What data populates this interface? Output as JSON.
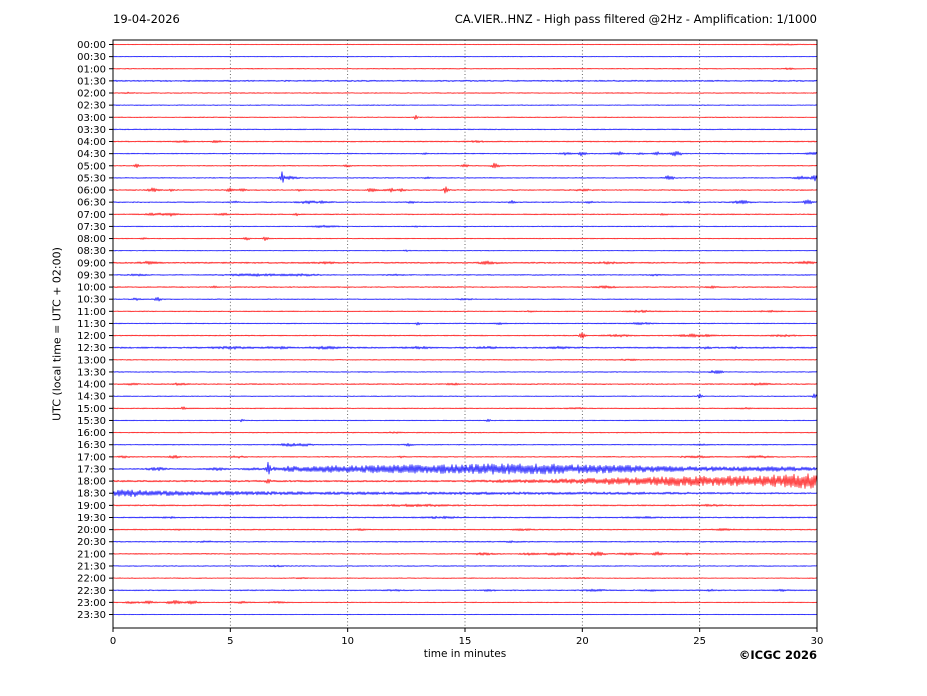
{
  "header": {
    "date": "19-04-2026",
    "title": "CA.VIER..HNZ - High pass filtered @2Hz - Amplification: 1/1000"
  },
  "footer": {
    "copyright": "©ICGC 2026"
  },
  "chart_data": {
    "type": "line",
    "subtype": "helicorder-seismogram",
    "date": "19-04-2026",
    "title": "CA.VIER..HNZ - High pass filtered @2Hz - Amplification: 1/1000",
    "xlabel": "time in minutes",
    "ylabel": "UTC (local time = UTC + 02:00)",
    "xlim": [
      0,
      30
    ],
    "x_ticks": [
      0,
      5,
      10,
      15,
      20,
      25,
      30
    ],
    "grid": "vertical dotted lines every 5 minutes",
    "legend": "none",
    "colors": {
      "red": "#ff0000",
      "blue": "#0000ff",
      "frame": "#000000",
      "grid": "#444444"
    },
    "minutes_per_row": 30,
    "rows_note": "48 half-hour traces, label = UTC start time, n = background noise half-amplitude (px), e = events [minute, half-amplitude px, gaussian width min]",
    "rows": [
      {
        "t": "00:00",
        "c": "red",
        "n": 0.35,
        "e": [
          [
            28.5,
            0.5,
            0.5
          ]
        ]
      },
      {
        "t": "00:30",
        "c": "blue",
        "n": 0.4,
        "e": []
      },
      {
        "t": "01:00",
        "c": "red",
        "n": 0.45,
        "e": [
          [
            28.8,
            0.7,
            0.15
          ]
        ]
      },
      {
        "t": "01:30",
        "c": "blue",
        "n": 0.75,
        "e": []
      },
      {
        "t": "02:00",
        "c": "red",
        "n": 0.5,
        "e": [
          [
            0.6,
            0.6,
            0.15
          ]
        ]
      },
      {
        "t": "02:30",
        "c": "blue",
        "n": 0.45,
        "e": []
      },
      {
        "t": "03:00",
        "c": "red",
        "n": 0.45,
        "e": [
          [
            12.9,
            2.8,
            0.05
          ]
        ]
      },
      {
        "t": "03:30",
        "c": "blue",
        "n": 0.55,
        "e": []
      },
      {
        "t": "04:00",
        "c": "red",
        "n": 0.6,
        "e": [
          [
            2.9,
            0.8,
            0.2
          ],
          [
            4.4,
            1.0,
            0.15
          ],
          [
            15.5,
            0.6,
            0.2
          ]
        ]
      },
      {
        "t": "04:30",
        "c": "blue",
        "n": 0.5,
        "e": [
          [
            13.3,
            1.0,
            0.08
          ],
          [
            19.3,
            1.5,
            0.15
          ],
          [
            20.0,
            2.5,
            0.1
          ],
          [
            21.5,
            2.0,
            0.15
          ],
          [
            22.5,
            1.0,
            0.1
          ],
          [
            23.2,
            1.5,
            0.12
          ],
          [
            24.0,
            2.0,
            0.18
          ],
          [
            29.8,
            1.2,
            0.2
          ]
        ]
      },
      {
        "t": "05:00",
        "c": "red",
        "n": 0.5,
        "e": [
          [
            1.0,
            1.6,
            0.08
          ],
          [
            10.0,
            1.0,
            0.1
          ],
          [
            15.0,
            1.2,
            0.1
          ],
          [
            16.3,
            2.6,
            0.12
          ]
        ]
      },
      {
        "t": "05:30",
        "c": "blue",
        "n": 0.5,
        "e": [
          [
            7.2,
            6.0,
            0.05
          ],
          [
            7.6,
            1.5,
            0.2
          ],
          [
            13.4,
            0.8,
            0.1
          ],
          [
            23.7,
            2.0,
            0.15
          ],
          [
            29.3,
            1.6,
            0.2
          ],
          [
            29.9,
            3.0,
            0.12
          ]
        ]
      },
      {
        "t": "06:00",
        "c": "red",
        "n": 0.6,
        "e": [
          [
            1.7,
            2.0,
            0.15
          ],
          [
            2.5,
            1.0,
            0.1
          ],
          [
            5.0,
            2.4,
            0.1
          ],
          [
            5.5,
            1.5,
            0.1
          ],
          [
            8.0,
            1.0,
            0.1
          ],
          [
            11.0,
            1.5,
            0.15
          ],
          [
            11.8,
            1.8,
            0.15
          ],
          [
            12.3,
            1.5,
            0.1
          ],
          [
            14.2,
            3.5,
            0.07
          ],
          [
            20.0,
            0.7,
            0.25
          ]
        ]
      },
      {
        "t": "06:30",
        "c": "blue",
        "n": 0.55,
        "e": [
          [
            5.2,
            0.8,
            0.1
          ],
          [
            8.3,
            1.2,
            0.3
          ],
          [
            9.0,
            1.0,
            0.2
          ],
          [
            12.7,
            1.0,
            0.1
          ],
          [
            17.0,
            2.0,
            0.08
          ],
          [
            20.3,
            1.0,
            0.1
          ],
          [
            24.5,
            0.8,
            0.1
          ],
          [
            26.8,
            1.5,
            0.25
          ],
          [
            29.6,
            2.2,
            0.12
          ]
        ]
      },
      {
        "t": "07:00",
        "c": "red",
        "n": 0.55,
        "e": [
          [
            1.8,
            1.0,
            0.3
          ],
          [
            2.5,
            1.4,
            0.15
          ],
          [
            4.7,
            0.8,
            0.2
          ],
          [
            7.8,
            1.3,
            0.07
          ],
          [
            23.5,
            0.6,
            0.2
          ]
        ]
      },
      {
        "t": "07:30",
        "c": "blue",
        "n": 0.45,
        "e": [
          [
            9.0,
            1.0,
            0.35
          ],
          [
            12.9,
            1.3,
            0.06
          ],
          [
            23.8,
            0.7,
            0.1
          ]
        ]
      },
      {
        "t": "08:00",
        "c": "red",
        "n": 0.45,
        "e": [
          [
            1.3,
            0.7,
            0.1
          ],
          [
            5.7,
            1.3,
            0.1
          ],
          [
            6.5,
            1.8,
            0.08
          ]
        ]
      },
      {
        "t": "08:30",
        "c": "blue",
        "n": 0.4,
        "e": [
          [
            12.5,
            0.6,
            0.1
          ]
        ]
      },
      {
        "t": "09:00",
        "c": "red",
        "n": 0.75,
        "e": [
          [
            1.5,
            1.0,
            0.25
          ],
          [
            9.0,
            0.7,
            0.3
          ],
          [
            16.0,
            1.2,
            0.25
          ],
          [
            21.0,
            0.7,
            0.3
          ],
          [
            29.5,
            1.3,
            0.2
          ]
        ]
      },
      {
        "t": "09:30",
        "c": "blue",
        "n": 0.55,
        "e": [
          [
            1.0,
            0.7,
            0.3
          ],
          [
            6.0,
            1.0,
            0.8
          ],
          [
            8.0,
            0.9,
            0.5
          ],
          [
            12.0,
            0.8,
            0.2
          ],
          [
            23.0,
            0.7,
            0.2
          ]
        ]
      },
      {
        "t": "10:00",
        "c": "red",
        "n": 0.6,
        "e": [
          [
            4.3,
            1.8,
            0.06
          ],
          [
            21.0,
            0.9,
            0.3
          ],
          [
            25.5,
            0.8,
            0.2
          ]
        ]
      },
      {
        "t": "10:30",
        "c": "blue",
        "n": 0.5,
        "e": [
          [
            1.0,
            1.2,
            0.12
          ],
          [
            1.9,
            2.0,
            0.1
          ],
          [
            15.0,
            0.6,
            0.2
          ]
        ]
      },
      {
        "t": "11:00",
        "c": "red",
        "n": 0.5,
        "e": [
          [
            17.8,
            0.8,
            0.1
          ],
          [
            22.5,
            0.9,
            0.4
          ],
          [
            28.0,
            0.8,
            0.3
          ]
        ]
      },
      {
        "t": "11:30",
        "c": "blue",
        "n": 0.5,
        "e": [
          [
            13.0,
            1.6,
            0.06
          ],
          [
            16.5,
            0.8,
            0.15
          ],
          [
            22.5,
            0.9,
            0.3
          ]
        ]
      },
      {
        "t": "12:00",
        "c": "red",
        "n": 0.55,
        "e": [
          [
            20.0,
            2.8,
            0.08
          ],
          [
            21.5,
            1.0,
            0.4
          ],
          [
            24.8,
            1.3,
            0.5
          ],
          [
            28.5,
            0.8,
            0.4
          ]
        ]
      },
      {
        "t": "12:30",
        "c": "blue",
        "n": 0.8,
        "e": [
          [
            5.0,
            0.9,
            0.5
          ],
          [
            7.0,
            0.9,
            0.4
          ],
          [
            9.0,
            0.9,
            0.5
          ],
          [
            13.0,
            0.9,
            0.3
          ],
          [
            16.0,
            0.8,
            0.3
          ],
          [
            19.0,
            0.8,
            0.3
          ],
          [
            25.3,
            1.2,
            0.1
          ],
          [
            26.5,
            1.0,
            0.1
          ]
        ]
      },
      {
        "t": "13:00",
        "c": "red",
        "n": 0.5,
        "e": [
          [
            22.0,
            0.6,
            0.3
          ]
        ]
      },
      {
        "t": "13:30",
        "c": "blue",
        "n": 0.5,
        "e": [
          [
            25.7,
            1.5,
            0.2
          ]
        ]
      },
      {
        "t": "14:00",
        "c": "red",
        "n": 0.6,
        "e": [
          [
            0.8,
            1.0,
            0.15
          ],
          [
            2.8,
            0.9,
            0.2
          ],
          [
            14.5,
            0.7,
            0.2
          ],
          [
            27.5,
            0.9,
            0.3
          ]
        ]
      },
      {
        "t": "14:30",
        "c": "blue",
        "n": 0.45,
        "e": [
          [
            25.0,
            1.8,
            0.07
          ],
          [
            29.9,
            2.0,
            0.08
          ]
        ]
      },
      {
        "t": "15:00",
        "c": "red",
        "n": 0.5,
        "e": [
          [
            3.0,
            1.4,
            0.07
          ],
          [
            19.7,
            0.8,
            0.2
          ],
          [
            27.0,
            0.6,
            0.2
          ]
        ]
      },
      {
        "t": "15:30",
        "c": "blue",
        "n": 0.45,
        "e": [
          [
            5.5,
            1.3,
            0.06
          ],
          [
            16.0,
            1.2,
            0.06
          ]
        ]
      },
      {
        "t": "16:00",
        "c": "red",
        "n": 0.5,
        "e": [
          [
            12.0,
            0.6,
            0.2
          ]
        ]
      },
      {
        "t": "16:30",
        "c": "blue",
        "n": 0.5,
        "e": [
          [
            7.5,
            1.3,
            0.3
          ],
          [
            8.2,
            1.0,
            0.2
          ],
          [
            12.6,
            1.1,
            0.12
          ],
          [
            25.0,
            0.6,
            0.2
          ]
        ]
      },
      {
        "t": "17:00",
        "c": "red",
        "n": 0.55,
        "e": [
          [
            0.5,
            0.8,
            0.2
          ],
          [
            2.6,
            1.2,
            0.15
          ],
          [
            5.3,
            0.8,
            0.2
          ],
          [
            12.3,
            0.8,
            0.1
          ],
          [
            24.8,
            0.9,
            0.4
          ],
          [
            27.5,
            1.0,
            0.35
          ]
        ]
      },
      {
        "t": "17:30",
        "c": "blue",
        "n": 0.7,
        "e": [
          [
            1.9,
            1.2,
            0.3
          ],
          [
            4.4,
            1.3,
            0.25
          ],
          [
            5.9,
            0.9,
            0.2
          ],
          [
            6.62,
            9.0,
            0.045
          ],
          [
            7.3,
            2.0,
            0.5
          ],
          [
            9.0,
            2.3,
            0.8
          ],
          [
            11.0,
            2.7,
            1.0
          ],
          [
            13.0,
            3.0,
            1.0
          ],
          [
            15.0,
            3.3,
            1.0
          ],
          [
            16.8,
            3.6,
            0.9
          ],
          [
            18.5,
            3.4,
            0.9
          ],
          [
            20.3,
            3.1,
            0.9
          ],
          [
            22.0,
            2.4,
            0.9
          ],
          [
            24.0,
            1.7,
            1.0
          ],
          [
            26.5,
            1.4,
            1.5
          ],
          [
            29.0,
            1.3,
            1.2
          ]
        ]
      },
      {
        "t": "18:00",
        "c": "red",
        "n": 0.9,
        "e": [
          [
            6.6,
            1.5,
            0.08
          ],
          [
            17.0,
            0.8,
            1.0
          ],
          [
            19.5,
            1.3,
            1.0
          ],
          [
            21.5,
            2.0,
            1.0
          ],
          [
            23.5,
            2.8,
            1.2
          ],
          [
            26.0,
            3.5,
            1.5
          ],
          [
            28.5,
            4.0,
            1.2
          ],
          [
            30.0,
            4.2,
            0.8
          ]
        ]
      },
      {
        "t": "18:30",
        "c": "blue",
        "n": 0.7,
        "e": [
          [
            0.3,
            2.2,
            0.5
          ],
          [
            1.2,
            1.8,
            0.6
          ],
          [
            2.5,
            1.4,
            0.8
          ],
          [
            4.5,
            1.1,
            1.0
          ],
          [
            7.0,
            0.9,
            1.5
          ],
          [
            11.0,
            0.8,
            2.0
          ],
          [
            16.0,
            0.7,
            2.0
          ],
          [
            22.0,
            0.6,
            3.0
          ]
        ]
      },
      {
        "t": "19:00",
        "c": "red",
        "n": 0.7,
        "e": [
          [
            13.0,
            0.8,
            1.0
          ],
          [
            25.5,
            0.7,
            0.3
          ]
        ]
      },
      {
        "t": "19:30",
        "c": "blue",
        "n": 0.65,
        "e": [
          [
            2.5,
            0.7,
            0.2
          ],
          [
            14.0,
            0.8,
            0.5
          ],
          [
            22.5,
            0.7,
            0.4
          ]
        ]
      },
      {
        "t": "20:00",
        "c": "red",
        "n": 0.6,
        "e": [
          [
            2.8,
            0.9,
            0.08
          ],
          [
            10.5,
            0.7,
            0.2
          ],
          [
            17.5,
            0.7,
            0.3
          ],
          [
            26.0,
            0.7,
            0.3
          ]
        ]
      },
      {
        "t": "20:30",
        "c": "blue",
        "n": 0.6,
        "e": [
          [
            4.0,
            0.6,
            0.2
          ],
          [
            17.0,
            0.6,
            0.2
          ]
        ]
      },
      {
        "t": "21:00",
        "c": "red",
        "n": 0.55,
        "e": [
          [
            15.8,
            0.9,
            0.3
          ],
          [
            17.8,
            1.0,
            0.25
          ],
          [
            18.8,
            1.1,
            0.25
          ],
          [
            19.5,
            1.0,
            0.2
          ],
          [
            20.6,
            1.8,
            0.25
          ],
          [
            22.0,
            0.9,
            0.3
          ],
          [
            23.2,
            1.7,
            0.18
          ],
          [
            24.5,
            0.8,
            0.2
          ]
        ]
      },
      {
        "t": "21:30",
        "c": "blue",
        "n": 0.5,
        "e": [
          [
            7.0,
            0.6,
            0.2
          ],
          [
            19.0,
            0.5,
            0.2
          ]
        ]
      },
      {
        "t": "22:00",
        "c": "red",
        "n": 0.45,
        "e": [
          [
            8.0,
            0.5,
            0.2
          ],
          [
            20.0,
            0.5,
            0.2
          ]
        ]
      },
      {
        "t": "22:30",
        "c": "blue",
        "n": 0.6,
        "e": [
          [
            12.0,
            0.8,
            0.2
          ],
          [
            16.0,
            0.7,
            0.2
          ],
          [
            20.5,
            0.8,
            0.3
          ],
          [
            23.0,
            0.7,
            0.3
          ],
          [
            25.5,
            0.8,
            0.2
          ],
          [
            28.5,
            0.7,
            0.2
          ]
        ]
      },
      {
        "t": "23:00",
        "c": "red",
        "n": 0.45,
        "e": [
          [
            0.8,
            1.0,
            0.2
          ],
          [
            1.5,
            1.2,
            0.2
          ],
          [
            2.6,
            1.8,
            0.22
          ],
          [
            3.4,
            1.5,
            0.18
          ],
          [
            5.5,
            0.8,
            0.3
          ],
          [
            7.0,
            0.7,
            0.3
          ]
        ]
      },
      {
        "t": "23:30",
        "c": "blue",
        "n": 0.3,
        "e": []
      }
    ]
  }
}
